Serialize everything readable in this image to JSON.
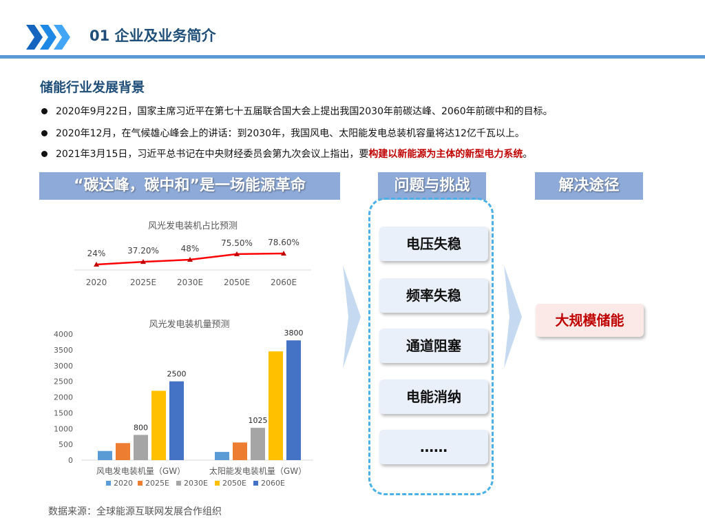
{
  "header": {
    "title": "01 企业及业务简介"
  },
  "section": {
    "title": "储能行业发展背景",
    "bullets": [
      {
        "text": "2020年9月22日，国家主席习近平在第七十五届联合国大会上提出我国2030年前碳达峰、2060年前碳中和的目标。",
        "highlight": "",
        "tail": ""
      },
      {
        "text": "2020年12月，在气候雄心峰会上的讲话：到2030年，我国风电、太阳能发电总装机容量将达12亿千瓦以上。",
        "highlight": "",
        "tail": ""
      },
      {
        "text": "2021年3月15日，习近平总书记在中央财经委员会第九次会议上指出，要",
        "highlight": "构建以新能源为主体的新型电力系统",
        "tail": "。"
      }
    ]
  },
  "banners": {
    "left": "“碳达峰，碳中和”是一场能源革命",
    "middle": "问题与挑战",
    "right": "解决途径"
  },
  "challenges": [
    "电压失稳",
    "频率失稳",
    "通道阻塞",
    "电能消纳",
    "……"
  ],
  "solution": "大规模储能",
  "source": "数据来源：全球能源互联网发展合作组织",
  "colors": {
    "accent": "#5b9bd5",
    "title": "#1f4e79",
    "banner": "#8eaad8",
    "highlight": "#c00000",
    "dashed": "#4ab0e8"
  },
  "chart_data": [
    {
      "type": "line",
      "title": "风光发电装机占比预测",
      "categories": [
        "2020",
        "2025E",
        "2030E",
        "2050E",
        "2060E"
      ],
      "values": [
        24,
        37.2,
        48,
        75.5,
        78.6
      ],
      "data_labels": [
        "24%",
        "37.20%",
        "48%",
        "75.50%",
        "78.60%"
      ],
      "line_color": "#ff0000"
    },
    {
      "type": "bar",
      "title": "风光发电装机量预测",
      "categories": [
        "风电发电装机量（GW）",
        "太阳能发电装机量（GW）"
      ],
      "ylim": [
        0,
        4000
      ],
      "yticks": [
        0,
        500,
        1000,
        1500,
        2000,
        2500,
        3000,
        3500,
        4000
      ],
      "series": [
        {
          "name": "2020",
          "values": [
            290,
            260
          ],
          "color": "#5b9bd5"
        },
        {
          "name": "2025E",
          "values": [
            540,
            560
          ],
          "color": "#ed7d31"
        },
        {
          "name": "2030E",
          "values": [
            800,
            1025
          ],
          "color": "#a5a5a5"
        },
        {
          "name": "2050E",
          "values": [
            2200,
            3450
          ],
          "color": "#ffc000"
        },
        {
          "name": "2060E",
          "values": [
            2500,
            3800
          ],
          "color": "#4472c4"
        }
      ],
      "data_labels": [
        {
          "category": 0,
          "series": 2,
          "text": "800"
        },
        {
          "category": 0,
          "series": 4,
          "text": "2500"
        },
        {
          "category": 1,
          "series": 2,
          "text": "1025"
        },
        {
          "category": 1,
          "series": 4,
          "text": "3800"
        }
      ]
    }
  ]
}
